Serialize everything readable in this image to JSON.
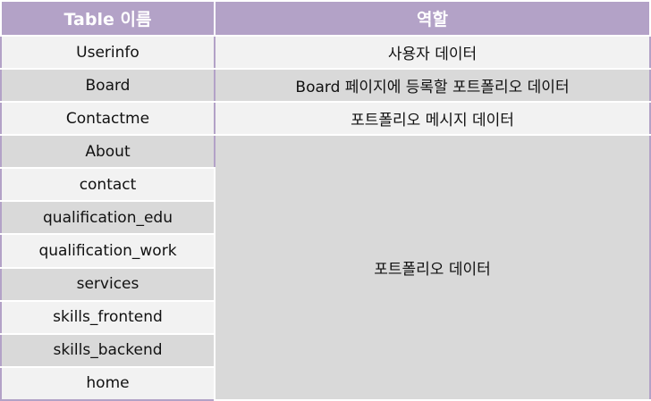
{
  "header": {
    "col1": "Table 이름",
    "col2": "역할"
  },
  "rows": [
    {
      "table": "Userinfo",
      "role": "사용자 데이터"
    },
    {
      "table": "Board",
      "role": "Board 페이지에 등록할 포트폴리오 데이터"
    },
    {
      "table": "Contactme",
      "role": "포트폴리오 메시지 데이터"
    },
    {
      "table": "About"
    },
    {
      "table": "contact"
    },
    {
      "table": "qualification_edu"
    },
    {
      "table": "qualification_work"
    },
    {
      "table": "services"
    },
    {
      "table": "skills_frontend"
    },
    {
      "table": "skills_backend"
    },
    {
      "table": "home"
    }
  ],
  "merged_role": "포트폴리오 데이터",
  "colors": {
    "header_bg": "#b3a2c7",
    "row_light": "#f2f2f2",
    "row_dark": "#d9d9d9"
  }
}
